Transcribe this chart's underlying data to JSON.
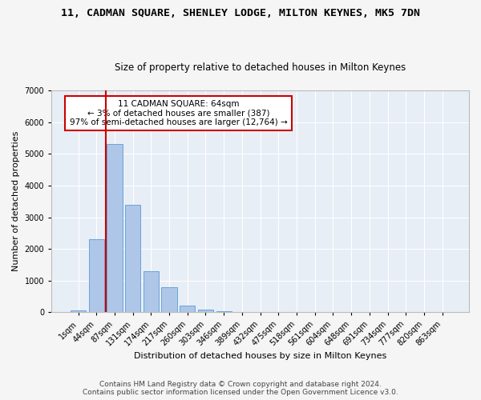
{
  "title": "11, CADMAN SQUARE, SHENLEY LODGE, MILTON KEYNES, MK5 7DN",
  "subtitle": "Size of property relative to detached houses in Milton Keynes",
  "xlabel": "Distribution of detached houses by size in Milton Keynes",
  "ylabel": "Number of detached properties",
  "footer_line1": "Contains HM Land Registry data © Crown copyright and database right 2024.",
  "footer_line2": "Contains public sector information licensed under the Open Government Licence v3.0.",
  "annotation_line1": "11 CADMAN SQUARE: 64sqm",
  "annotation_line2": "← 3% of detached houses are smaller (387)",
  "annotation_line3": "97% of semi-detached houses are larger (12,764) →",
  "categories": [
    "1sqm",
    "44sqm",
    "87sqm",
    "131sqm",
    "174sqm",
    "217sqm",
    "260sqm",
    "303sqm",
    "346sqm",
    "389sqm",
    "432sqm",
    "475sqm",
    "518sqm",
    "561sqm",
    "604sqm",
    "648sqm",
    "691sqm",
    "734sqm",
    "777sqm",
    "820sqm",
    "863sqm"
  ],
  "values": [
    50,
    2300,
    5300,
    3400,
    1300,
    800,
    200,
    80,
    30,
    10,
    5,
    2,
    1,
    0,
    0,
    0,
    0,
    0,
    0,
    0,
    0
  ],
  "bar_color": "#aec6e8",
  "bar_edge_color": "#5b9bd5",
  "vline_color": "#cc0000",
  "vline_x": 1.5,
  "annotation_box_edge_color": "#cc0000",
  "annotation_box_face_color": "#ffffff",
  "bg_color": "#e8eef5",
  "fig_bg_color": "#f5f5f5",
  "ylim": [
    0,
    7000
  ],
  "yticks": [
    0,
    1000,
    2000,
    3000,
    4000,
    5000,
    6000,
    7000
  ],
  "grid_color": "#ffffff",
  "title_fontsize": 9.5,
  "subtitle_fontsize": 8.5,
  "axis_label_fontsize": 8,
  "tick_fontsize": 7,
  "annotation_fontsize": 7.5,
  "footer_fontsize": 6.5
}
